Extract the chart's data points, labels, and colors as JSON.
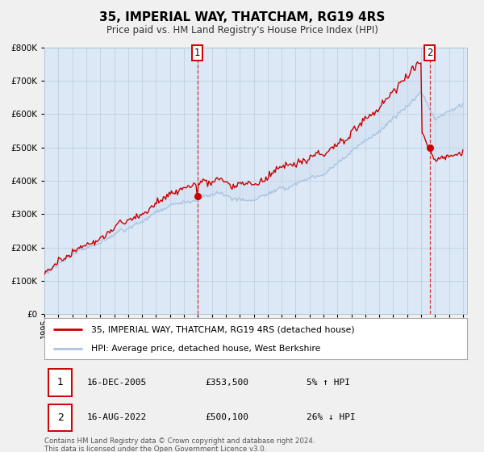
{
  "title": "35, IMPERIAL WAY, THATCHAM, RG19 4RS",
  "subtitle": "Price paid vs. HM Land Registry's House Price Index (HPI)",
  "legend_line1": "35, IMPERIAL WAY, THATCHAM, RG19 4RS (detached house)",
  "legend_line2": "HPI: Average price, detached house, West Berkshire",
  "marker1_date": "16-DEC-2005",
  "marker1_price": "£353,500",
  "marker1_hpi": "5% ↑ HPI",
  "marker2_date": "16-AUG-2022",
  "marker2_price": "£500,100",
  "marker2_hpi": "26% ↓ HPI",
  "footer": "Contains HM Land Registry data © Crown copyright and database right 2024.\nThis data is licensed under the Open Government Licence v3.0.",
  "red_color": "#cc0000",
  "blue_color": "#aac4e0",
  "fill_color": "#c8daf0",
  "background_color": "#dce8f5",
  "fig_bg_color": "#f0f0f0",
  "grid_color": "#c0d0e0",
  "ylim": [
    0,
    800000
  ],
  "xlim_start": 1995.0,
  "xlim_end": 2025.3,
  "marker1_x": 2005.96,
  "marker2_x": 2022.62,
  "marker1_y": 353500,
  "marker2_y": 500100
}
